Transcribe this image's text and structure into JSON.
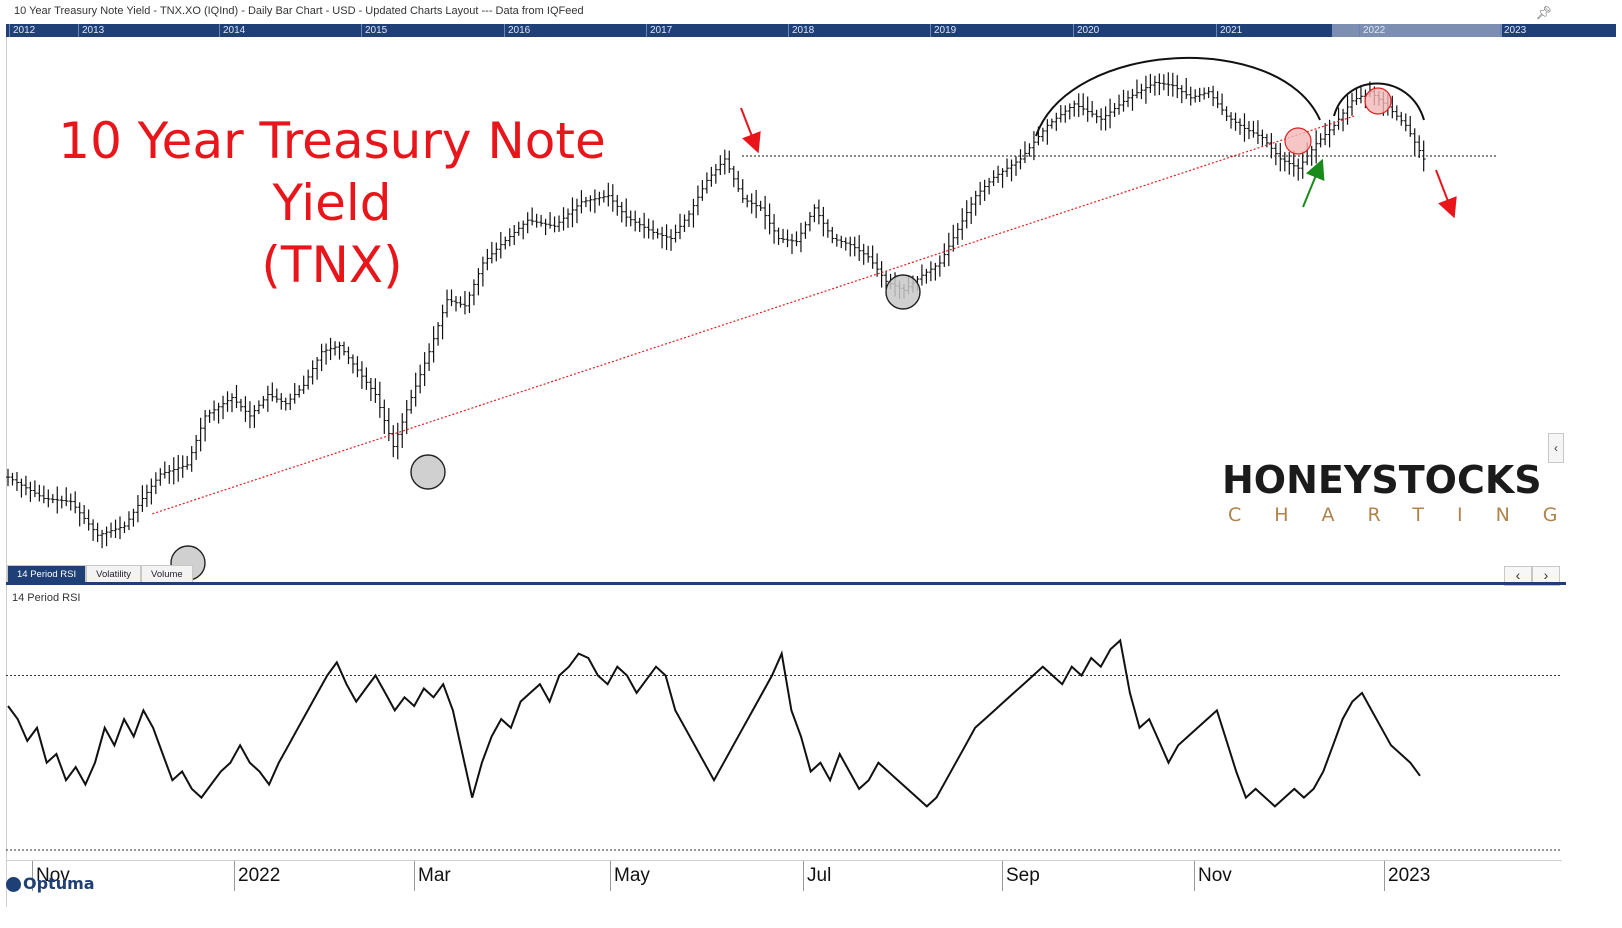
{
  "window": {
    "title": "10 Year Treasury Note Yield - TNX.XO (IQInd) - Daily Bar Chart - USD - Updated Charts Layout --- Data from IQFeed"
  },
  "timeline": {
    "years": [
      "2012",
      "2013",
      "2014",
      "2015",
      "2016",
      "2017",
      "2018",
      "2019",
      "2020",
      "2021",
      "2022",
      "2023"
    ]
  },
  "annotations": {
    "title_line1": "10 Year Treasury Note Yield",
    "title_line2": "(TNX)"
  },
  "brand": {
    "main": "HONEYSTOCKS",
    "sub": "CHARTING"
  },
  "tabs": [
    "14 Period RSI",
    "Volatility",
    "Volume"
  ],
  "rsi_panel": {
    "label": "14 Period RSI"
  },
  "footer": {
    "logo": "Optuma"
  },
  "colors": {
    "accent": "#1f3f77",
    "annotation_red": "#e8161b",
    "annotation_green": "#1a8a1a",
    "trendline": "#e02020"
  },
  "chart_data": [
    {
      "type": "bar",
      "title": "",
      "x_ticks": [
        "Nov",
        "2022",
        "Mar",
        "May",
        "Jul",
        "Sep",
        "Nov",
        "2023"
      ],
      "price_waypoints": [
        [
          0,
          0.02
        ],
        [
          8,
          -0.05
        ],
        [
          14,
          -0.06
        ],
        [
          20,
          -0.17
        ],
        [
          26,
          -0.14
        ],
        [
          30,
          -0.05
        ],
        [
          34,
          0.03
        ],
        [
          40,
          0.06
        ],
        [
          44,
          0.22
        ],
        [
          50,
          0.28
        ],
        [
          54,
          0.22
        ],
        [
          58,
          0.29
        ],
        [
          62,
          0.26
        ],
        [
          66,
          0.32
        ],
        [
          70,
          0.43
        ],
        [
          74,
          0.45
        ],
        [
          78,
          0.37
        ],
        [
          82,
          0.29
        ],
        [
          86,
          0.12
        ],
        [
          90,
          0.28
        ],
        [
          94,
          0.43
        ],
        [
          98,
          0.6
        ],
        [
          102,
          0.58
        ],
        [
          106,
          0.72
        ],
        [
          110,
          0.78
        ],
        [
          116,
          0.86
        ],
        [
          122,
          0.84
        ],
        [
          128,
          0.92
        ],
        [
          134,
          0.94
        ],
        [
          138,
          0.87
        ],
        [
          144,
          0.82
        ],
        [
          148,
          0.8
        ],
        [
          152,
          0.88
        ],
        [
          156,
          0.99
        ],
        [
          160,
          1.06
        ],
        [
          164,
          0.93
        ],
        [
          168,
          0.9
        ],
        [
          172,
          0.8
        ],
        [
          176,
          0.79
        ],
        [
          180,
          0.9
        ],
        [
          184,
          0.8
        ],
        [
          188,
          0.78
        ],
        [
          192,
          0.74
        ],
        [
          196,
          0.66
        ],
        [
          200,
          0.63
        ],
        [
          204,
          0.68
        ],
        [
          208,
          0.72
        ],
        [
          212,
          0.83
        ],
        [
          216,
          0.94
        ],
        [
          220,
          1.0
        ],
        [
          226,
          1.06
        ],
        [
          232,
          1.17
        ],
        [
          238,
          1.24
        ],
        [
          244,
          1.19
        ],
        [
          250,
          1.26
        ],
        [
          256,
          1.31
        ],
        [
          260,
          1.3
        ],
        [
          264,
          1.26
        ],
        [
          268,
          1.28
        ],
        [
          272,
          1.2
        ],
        [
          276,
          1.16
        ],
        [
          280,
          1.13
        ],
        [
          284,
          1.06
        ],
        [
          288,
          1.03
        ],
        [
          292,
          1.11
        ],
        [
          296,
          1.17
        ],
        [
          300,
          1.25
        ],
        [
          304,
          1.28
        ],
        [
          308,
          1.23
        ],
        [
          312,
          1.17
        ],
        [
          316,
          1.06
        ]
      ],
      "price_range": [
        -0.3,
        1.4
      ],
      "horizontal_level": 1.07,
      "trendline": {
        "from": [
          30,
          -0.1
        ],
        "to": [
          296,
          1.2
        ]
      }
    },
    {
      "type": "line",
      "title": "",
      "series": [
        {
          "values": [
            63,
            60,
            55,
            58,
            50,
            52,
            46,
            49,
            45,
            50,
            58,
            54,
            60,
            56,
            62,
            58,
            52,
            46,
            48,
            44,
            42,
            45,
            48,
            50,
            54,
            50,
            48,
            45,
            50,
            54,
            58,
            62,
            66,
            70,
            73,
            68,
            64,
            67,
            70,
            66,
            62,
            65,
            63,
            67,
            65,
            68,
            62,
            52,
            42,
            50,
            56,
            60,
            58,
            64,
            66,
            68,
            64,
            70,
            72,
            75,
            74,
            70,
            68,
            72,
            70,
            66,
            69,
            72,
            70,
            62,
            58,
            54,
            50,
            46,
            50,
            54,
            58,
            62,
            66,
            70,
            75,
            62,
            56,
            48,
            50,
            46,
            52,
            48,
            44,
            46,
            50,
            48,
            46,
            44,
            42,
            40,
            42,
            46,
            50,
            54,
            58,
            60,
            62,
            64,
            66,
            68,
            70,
            72,
            70,
            68,
            72,
            70,
            74,
            72,
            76,
            78,
            66,
            58,
            60,
            55,
            50,
            54,
            56,
            58,
            60,
            62,
            55,
            48,
            42,
            44,
            42,
            40,
            42,
            44,
            42,
            44,
            48,
            54,
            60,
            64,
            66,
            62,
            58,
            54,
            52,
            50,
            47
          ]
        }
      ],
      "ylim": [
        30,
        85
      ],
      "reference_lines": [
        70,
        30
      ]
    }
  ]
}
